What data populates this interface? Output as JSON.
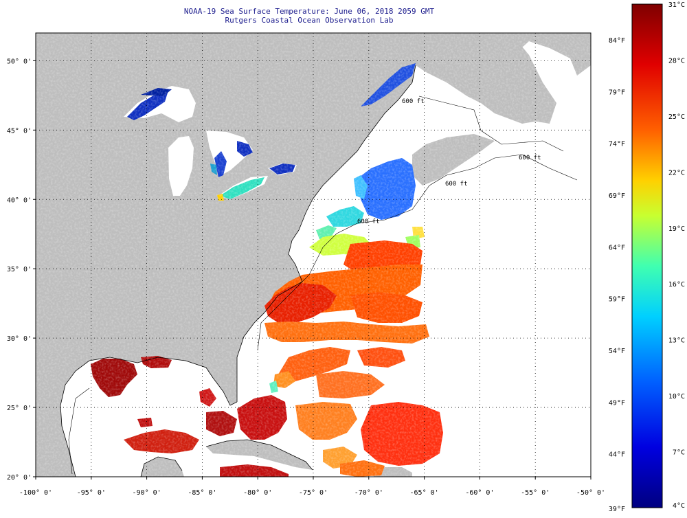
{
  "title_line1": "NOAA-19 Sea Surface Temperature:  June 06, 2018 2059 GMT",
  "title_line2": "Rutgers Coastal Ocean Observation Lab",
  "map": {
    "lon_range": [
      -100,
      -50
    ],
    "lat_range": [
      20,
      52
    ],
    "lon_ticks": [
      "-100° 0'",
      "-95° 0'",
      "-90° 0'",
      "-85° 0'",
      "-80° 0'",
      "-75° 0'",
      "-70° 0'",
      "-65° 0'",
      "-60° 0'",
      "-55° 0'",
      "-50° 0'"
    ],
    "lat_ticks": [
      "20° 0'",
      "25° 0'",
      "30° 0'",
      "35° 0'",
      "40° 0'",
      "45° 0'",
      "50° 0'"
    ],
    "land_color": "#bebebe",
    "no_data_color": "#ffffff",
    "grid": "dotted",
    "contour_labels": [
      "600 ft",
      "600 ft",
      "600 ft",
      "600 ft"
    ]
  },
  "colorbar": {
    "celsius_labels": [
      "31°C",
      "28°C",
      "25°C",
      "22°C",
      "19°C",
      "16°C",
      "13°C",
      "10°C",
      "7°C",
      "4°C"
    ],
    "fahrenheit_labels": [
      "84°F",
      "79°F",
      "74°F",
      "69°F",
      "64°F",
      "59°F",
      "54°F",
      "49°F",
      "44°F",
      "39°F"
    ],
    "colors": [
      "#7f0000",
      "#e00000",
      "#ff6000",
      "#ffd000",
      "#c8ff30",
      "#40ffb0",
      "#00d0ff",
      "#0060ff",
      "#0000e0",
      "#000080"
    ]
  }
}
